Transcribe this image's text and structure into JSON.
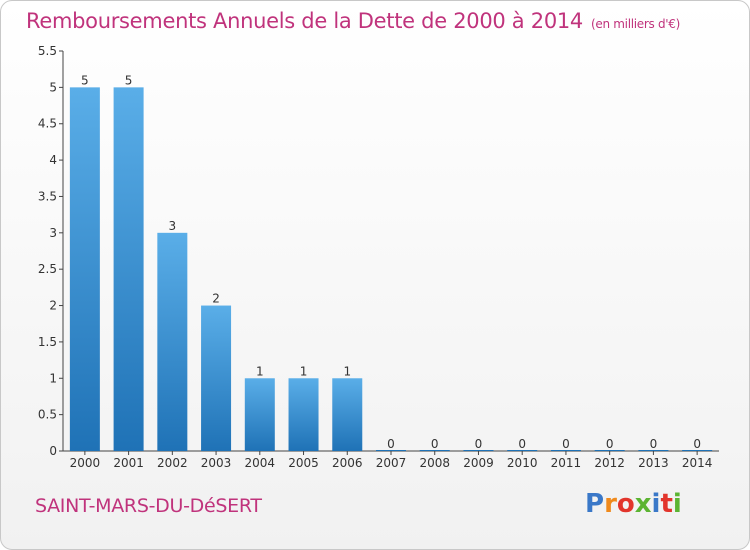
{
  "header": {
    "title": "Remboursements Annuels de la Dette de 2000 à 2014",
    "unit": "(en milliers d'€)"
  },
  "footer": {
    "city": "SAINT-MARS-DU-DéSERT",
    "logo": [
      "P",
      "r",
      "o",
      "x",
      "i",
      "t",
      "i"
    ]
  },
  "colors": {
    "title": "#c0337c",
    "bar_light": "#5aaee8",
    "bar_dark": "#1f72b6",
    "logo": [
      "#3a78c8",
      "#f08a1c",
      "#e2352c",
      "#5cb432",
      "#3a78c8",
      "#e2352c",
      "#5cb432"
    ]
  },
  "chart_data": {
    "type": "bar",
    "title": "Remboursements Annuels de la Dette de 2000 à 2014",
    "xlabel": "",
    "ylabel": "",
    "categories": [
      "2000",
      "2001",
      "2002",
      "2003",
      "2004",
      "2005",
      "2006",
      "2007",
      "2008",
      "2009",
      "2010",
      "2011",
      "2012",
      "2013",
      "2014"
    ],
    "values": [
      5,
      5,
      3,
      2,
      1,
      1,
      1,
      0,
      0,
      0,
      0,
      0,
      0,
      0,
      0
    ],
    "value_labels": [
      "5",
      "5",
      "3",
      "2",
      "1",
      "1",
      "1",
      "0",
      "0",
      "0",
      "0",
      "0",
      "0",
      "0",
      "0"
    ],
    "ylim": [
      0,
      5.5
    ],
    "yticks": [
      0,
      0.5,
      1,
      1.5,
      2,
      2.5,
      3,
      3.5,
      4,
      4.5,
      5,
      5.5
    ],
    "ytick_labels": [
      "0",
      "0.5",
      "1",
      "1.5",
      "2",
      "2.5",
      "3",
      "3.5",
      "4",
      "4.5",
      "5",
      "5.5"
    ],
    "grid": false
  }
}
